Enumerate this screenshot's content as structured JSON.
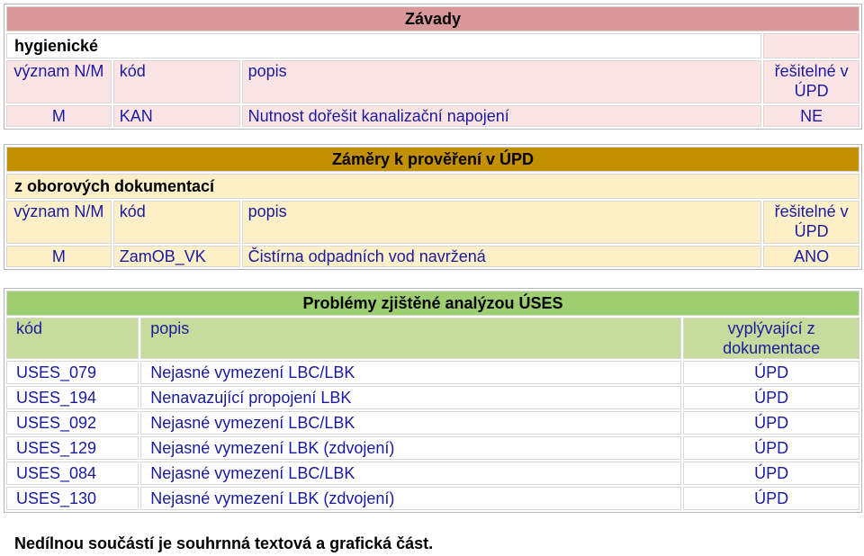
{
  "defects": {
    "title": "Závady",
    "category": "hygienické",
    "headers": {
      "importance": "význam N/M",
      "code": "kód",
      "description": "popis",
      "solvable": "řešitelné v ÚPD"
    },
    "rows": [
      {
        "importance": "M",
        "code": "KAN",
        "description": "Nutnost dořešit kanalizační napojení",
        "solvable": "NE"
      }
    ]
  },
  "intentions": {
    "title": "Záměry k prověření v ÚPD",
    "category": "z oborových dokumentací",
    "headers": {
      "importance": "význam N/M",
      "code": "kód",
      "description": "popis",
      "solvable": "řešitelné v ÚPD"
    },
    "rows": [
      {
        "importance": "M",
        "code": "ZamOB_VK",
        "description": "Čistírna odpadních vod navržená",
        "solvable": "ANO"
      }
    ]
  },
  "problems": {
    "title": "Problémy zjištěné analýzou ÚSES",
    "headers": {
      "code": "kód",
      "description": "popis",
      "source": "vyplývající z dokumentace"
    },
    "rows": [
      {
        "code": "USES_079",
        "description": "Nejasné vymezení LBC/LBK",
        "source": "ÚPD"
      },
      {
        "code": "USES_194",
        "description": "Nenavazující propojení LBK",
        "source": "ÚPD"
      },
      {
        "code": "USES_092",
        "description": "Nejasné vymezení LBC/LBK",
        "source": "ÚPD"
      },
      {
        "code": "USES_129",
        "description": "Nejasné vymezení LBK (zdvojení)",
        "source": "ÚPD"
      },
      {
        "code": "USES_084",
        "description": "Nejasné vymezení LBC/LBK",
        "source": "ÚPD"
      },
      {
        "code": "USES_130",
        "description": "Nejasné vymezení LBK (zdvojení)",
        "source": "ÚPD"
      }
    ]
  },
  "footer": "Nedílnou součástí je souhrnná textová a grafická část."
}
